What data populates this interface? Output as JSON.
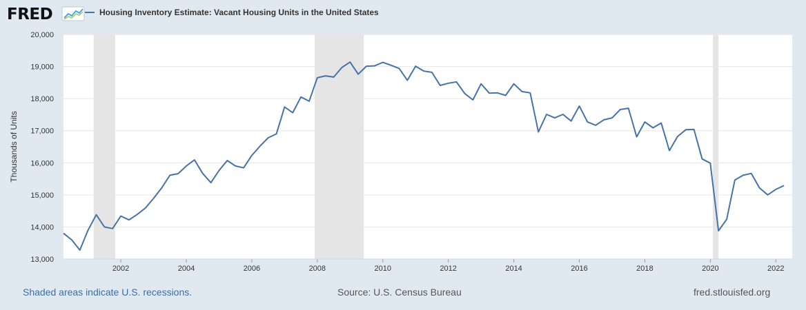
{
  "logo": {
    "text": "FRED"
  },
  "colors": {
    "background": "#e1e9f0",
    "plot_bg": "#ffffff",
    "series": "#4572a7",
    "recession": "#e5e5e5",
    "grid": "#e6e6e6"
  },
  "footer": {
    "left": "Shaded areas indicate U.S. recessions.",
    "center": "Source: U.S. Census Bureau",
    "right": "fred.stlouisfed.org"
  },
  "chart_data": {
    "type": "line",
    "title": "",
    "xlabel": "",
    "ylabel": "Thousands of Units",
    "ylim": [
      13000,
      20000
    ],
    "xlim": [
      2000.25,
      2022.5
    ],
    "grid": true,
    "legend": "top-left",
    "y_ticks": [
      "13,000",
      "14,000",
      "15,000",
      "16,000",
      "17,000",
      "18,000",
      "19,000",
      "20,000"
    ],
    "x_ticks": [
      "2002",
      "2004",
      "2006",
      "2008",
      "2010",
      "2012",
      "2014",
      "2016",
      "2018",
      "2020",
      "2022"
    ],
    "recessions": [
      [
        2001.17,
        2001.83
      ],
      [
        2007.92,
        2009.42
      ],
      [
        2020.08,
        2020.25
      ]
    ],
    "series": [
      {
        "name": "Housing Inventory Estimate: Vacant Housing Units in the United States",
        "start": "2000-Q2",
        "frequency": "quarterly",
        "values": [
          13800,
          13600,
          13280,
          13900,
          14380,
          14000,
          13950,
          14340,
          14220,
          14390,
          14590,
          14890,
          15220,
          15610,
          15660,
          15900,
          16090,
          15670,
          15380,
          15760,
          16070,
          15900,
          15840,
          16230,
          16520,
          16780,
          16900,
          17740,
          17560,
          18050,
          17920,
          18650,
          18710,
          18670,
          18970,
          19140,
          18760,
          19010,
          19020,
          19130,
          19040,
          18940,
          18570,
          19010,
          18860,
          18820,
          18410,
          18480,
          18520,
          18160,
          17960,
          18460,
          18170,
          18180,
          18100,
          18460,
          18220,
          18180,
          16960,
          17510,
          17400,
          17510,
          17300,
          17770,
          17270,
          17170,
          17340,
          17400,
          17660,
          17700,
          16810,
          17270,
          17090,
          17240,
          16380,
          16820,
          17030,
          17040,
          16120,
          15990,
          13880,
          14240,
          15460,
          15610,
          15670,
          15220,
          15000,
          15170,
          15290
        ]
      }
    ]
  }
}
